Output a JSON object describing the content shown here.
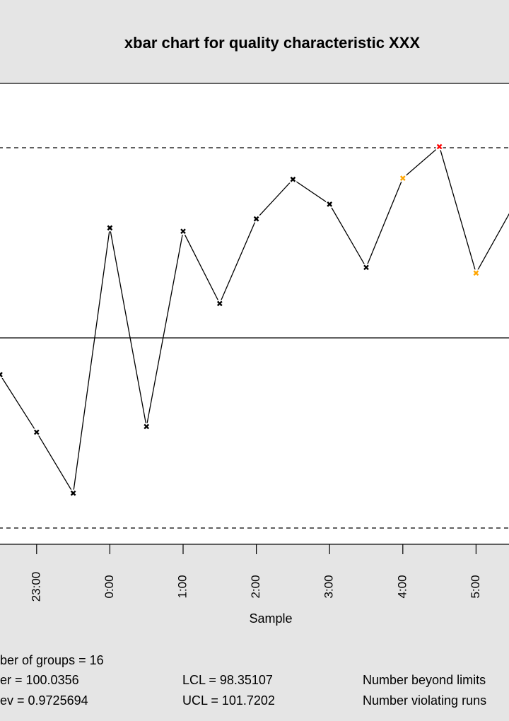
{
  "chart_data": {
    "type": "line",
    "title": "xbar chart for quality characteristic XXX",
    "x_label": "Sample",
    "categories": [
      null,
      "23:00",
      null,
      "0:00",
      null,
      "1:00",
      null,
      "2:00",
      null,
      "3:00",
      null,
      "4:00",
      null,
      "5:00",
      null,
      null
    ],
    "values": [
      99.71,
      99.2,
      98.66,
      101.01,
      99.25,
      100.98,
      100.34,
      101.09,
      101.44,
      101.22,
      100.66,
      101.45,
      101.73,
      100.61,
      101.19,
      null
    ],
    "point_colors": [
      "#000000",
      "#000000",
      "#000000",
      "#000000",
      "#000000",
      "#000000",
      "#000000",
      "#000000",
      "#000000",
      "#000000",
      "#000000",
      "#ffa500",
      "#ff0000",
      "#ffa500",
      "#000000",
      "#000000"
    ],
    "line_color": "#000000",
    "center": 100.0356,
    "lcl": 98.35107,
    "ucl": 101.7202,
    "ylim": [
      98.207,
      102.29
    ],
    "stats": [
      [
        "ber of groups = 16"
      ],
      [
        "er = 100.0356",
        "LCL = 98.35107",
        "Number beyond limits"
      ],
      [
        "ev = 0.9725694",
        "UCL = 101.7202",
        "Number violating runs"
      ]
    ]
  }
}
